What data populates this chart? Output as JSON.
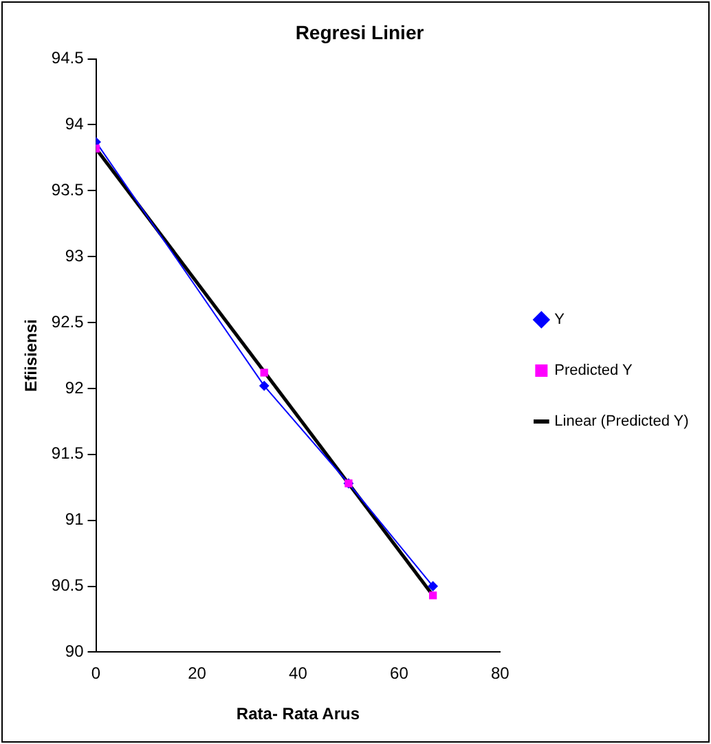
{
  "chart_data": {
    "type": "line",
    "title": "Regresi Linier",
    "xlabel": "Rata- Rata Arus",
    "ylabel": "Efiisiensi",
    "xlim": [
      0,
      80
    ],
    "xticks": [
      0,
      20,
      40,
      60,
      80
    ],
    "ylim": [
      90,
      94.5
    ],
    "yticks": [
      90,
      90.5,
      91,
      91.5,
      92,
      92.5,
      93,
      93.5,
      94,
      94.5
    ],
    "grid": false,
    "legend": "right",
    "series": [
      {
        "name": "Y",
        "type": "line",
        "color": "#0000ff",
        "marker": "diamond",
        "x": [
          0,
          33.3,
          50,
          66.7
        ],
        "values": [
          93.87,
          92.02,
          91.28,
          90.5
        ]
      },
      {
        "name": "Predicted Y",
        "type": "scatter",
        "color": "#ff00ff",
        "marker": "square",
        "x": [
          0,
          33.3,
          50,
          66.7
        ],
        "values": [
          93.82,
          92.12,
          91.28,
          90.43
        ]
      },
      {
        "name": "Linear (Predicted Y)",
        "type": "line",
        "color": "#000000",
        "marker": "none",
        "x": [
          0,
          66.7
        ],
        "values": [
          93.82,
          90.43
        ]
      }
    ]
  }
}
